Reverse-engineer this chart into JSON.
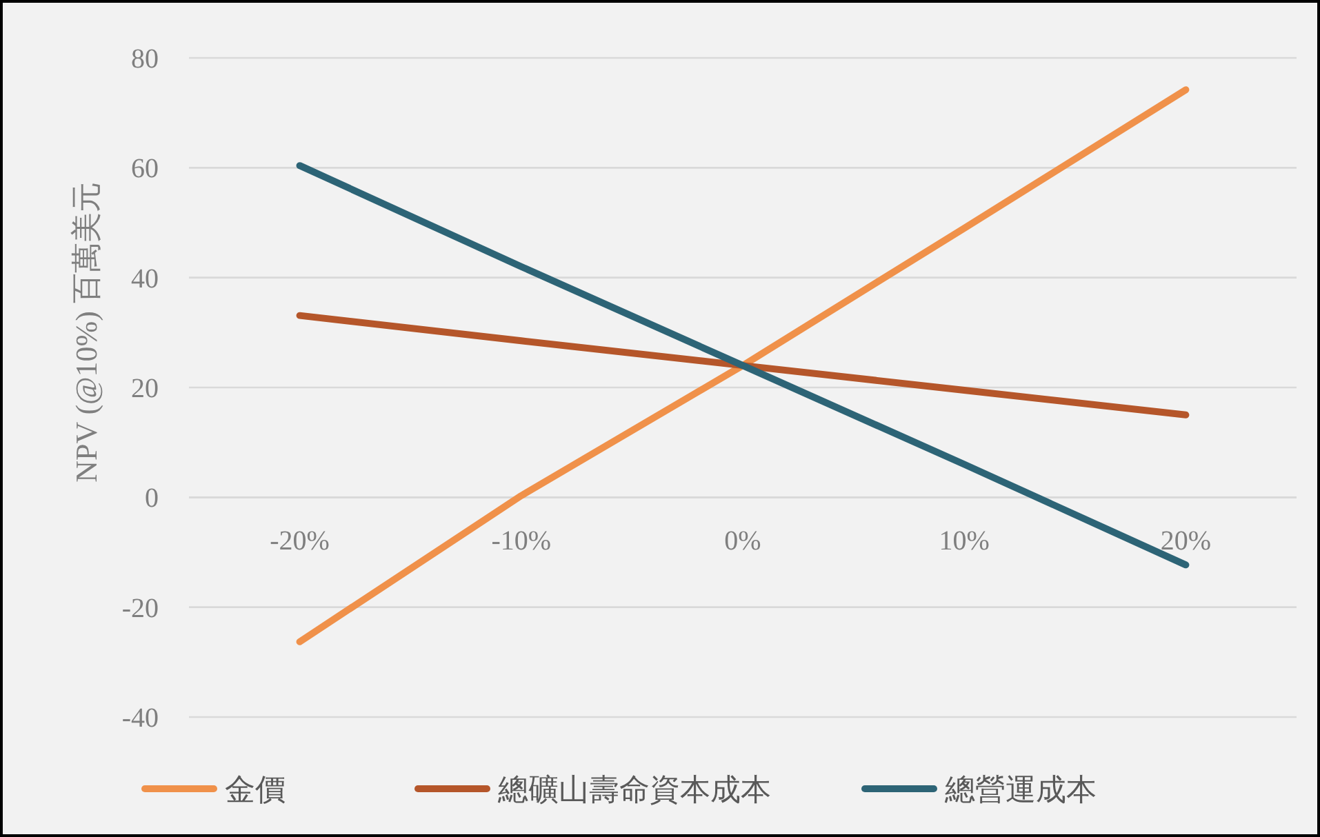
{
  "chart_data": {
    "type": "line",
    "ylabel": "NPV (@10%) 百萬美元",
    "categories": [
      "-20%",
      "-10%",
      "0%",
      "10%",
      "20%"
    ],
    "ylim": [
      -40,
      80
    ],
    "yticks": [
      -40,
      -20,
      0,
      20,
      40,
      60,
      80
    ],
    "grid": "y",
    "legend": "bottom",
    "marker": "none",
    "line_style": "solid",
    "series": [
      {
        "name": "金價",
        "color": "#f0914a",
        "values": [
          -26.3,
          0.3,
          24,
          49,
          74.2
        ]
      },
      {
        "name": "總礦山壽命資本成本",
        "color": "#b5562a",
        "values": [
          33.1,
          28.5,
          24,
          19.5,
          15
        ]
      },
      {
        "name": "總營運成本",
        "color": "#2d6476",
        "values": [
          60.4,
          42,
          24,
          6,
          -12.3
        ]
      }
    ]
  }
}
